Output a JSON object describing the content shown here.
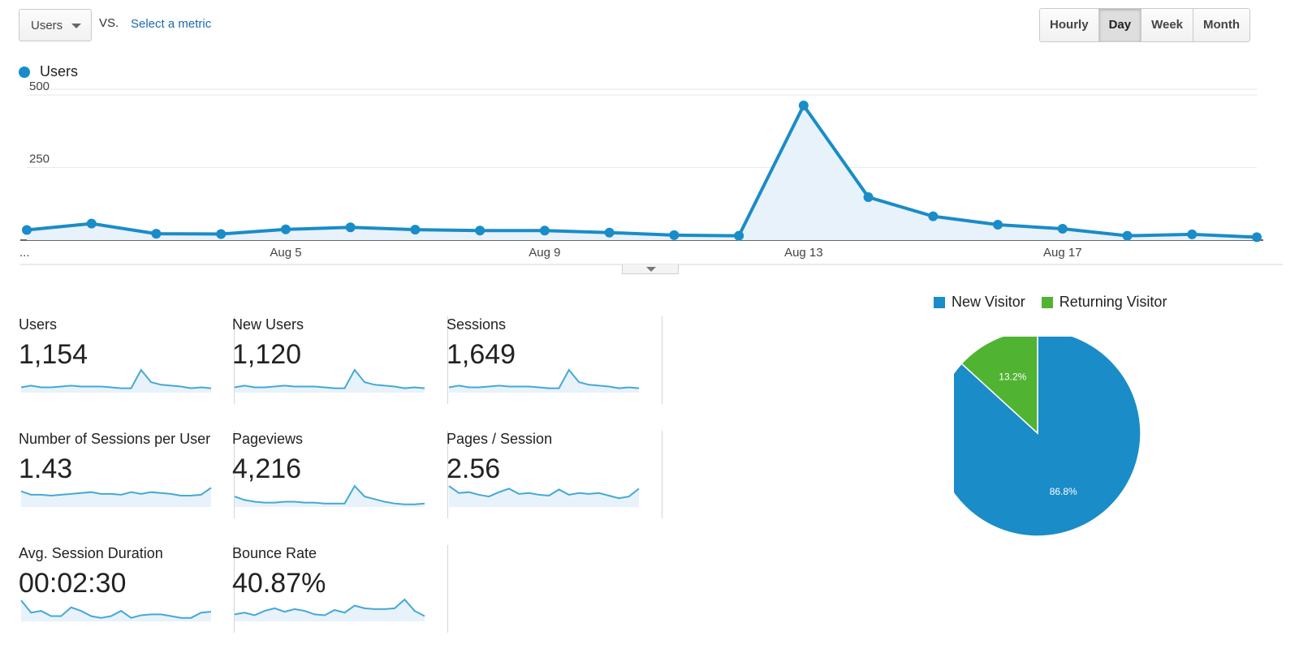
{
  "toolbar": {
    "metric_label": "Users",
    "vs_label": "VS.",
    "select_metric_label": "Select a metric",
    "granularity": [
      "Hourly",
      "Day",
      "Week",
      "Month"
    ],
    "granularity_selected": "Day"
  },
  "legend": {
    "series_label": "Users",
    "color": "#1a8cc8"
  },
  "chart_data": {
    "type": "area",
    "series": [
      {
        "name": "Users",
        "values": [
          35,
          57,
          22,
          21,
          37,
          44,
          36,
          33,
          33,
          26,
          17,
          15,
          464,
          148,
          82,
          53,
          39,
          15,
          20,
          10
        ]
      }
    ],
    "y_ticks": [
      500,
      250
    ],
    "x_ticks": [
      "...",
      "Aug 5",
      "Aug 9",
      "Aug 13",
      "Aug 17"
    ],
    "ylim": [
      0,
      520
    ],
    "grid": true,
    "color": "#1a8cc8"
  },
  "scorecards": [
    {
      "title": "Users",
      "value": "1,154",
      "spark": [
        6,
        8,
        6,
        6,
        7,
        8,
        7,
        7,
        7,
        6,
        5,
        5,
        26,
        12,
        9,
        8,
        7,
        5,
        6,
        5
      ]
    },
    {
      "title": "New Users",
      "value": "1,120",
      "spark": [
        6,
        8,
        6,
        6,
        7,
        8,
        7,
        7,
        7,
        6,
        5,
        5,
        26,
        12,
        9,
        8,
        7,
        5,
        6,
        5
      ]
    },
    {
      "title": "Sessions",
      "value": "1,649",
      "spark": [
        6,
        8,
        6,
        6,
        7,
        8,
        7,
        7,
        7,
        6,
        5,
        5,
        26,
        12,
        9,
        8,
        7,
        5,
        6,
        5
      ]
    },
    {
      "title": "Number of Sessions per User",
      "value": "1.43",
      "spark": [
        18,
        14,
        14,
        13,
        14,
        15,
        16,
        17,
        15,
        15,
        14,
        17,
        15,
        17,
        16,
        15,
        13,
        13,
        14,
        22
      ]
    },
    {
      "title": "Pageviews",
      "value": "4,216",
      "spark": [
        12,
        8,
        6,
        5,
        5,
        6,
        6,
        5,
        5,
        4,
        4,
        4,
        24,
        12,
        9,
        6,
        4,
        3,
        3,
        4
      ]
    },
    {
      "title": "Pages / Session",
      "value": "2.56",
      "spark": [
        24,
        16,
        17,
        14,
        12,
        17,
        21,
        15,
        16,
        14,
        13,
        20,
        14,
        16,
        15,
        16,
        13,
        10,
        12,
        21
      ]
    },
    {
      "title": "Avg. Session Duration",
      "value": "00:02:30",
      "spark": [
        24,
        10,
        12,
        6,
        6,
        16,
        12,
        6,
        4,
        6,
        12,
        4,
        7,
        8,
        8,
        6,
        4,
        4,
        10,
        11
      ]
    },
    {
      "title": "Bounce Rate",
      "value": "40.87%",
      "spark": [
        8,
        10,
        7,
        12,
        15,
        11,
        14,
        12,
        8,
        7,
        13,
        10,
        18,
        15,
        14,
        14,
        15,
        25,
        12,
        6
      ]
    }
  ],
  "pie": {
    "type": "pie",
    "slices": [
      {
        "label": "New Visitor",
        "value": 86.8,
        "display": "86.8%",
        "color": "#1a8cc8"
      },
      {
        "label": "Returning Visitor",
        "value": 13.2,
        "display": "13.2%",
        "color": "#50b432"
      }
    ]
  }
}
